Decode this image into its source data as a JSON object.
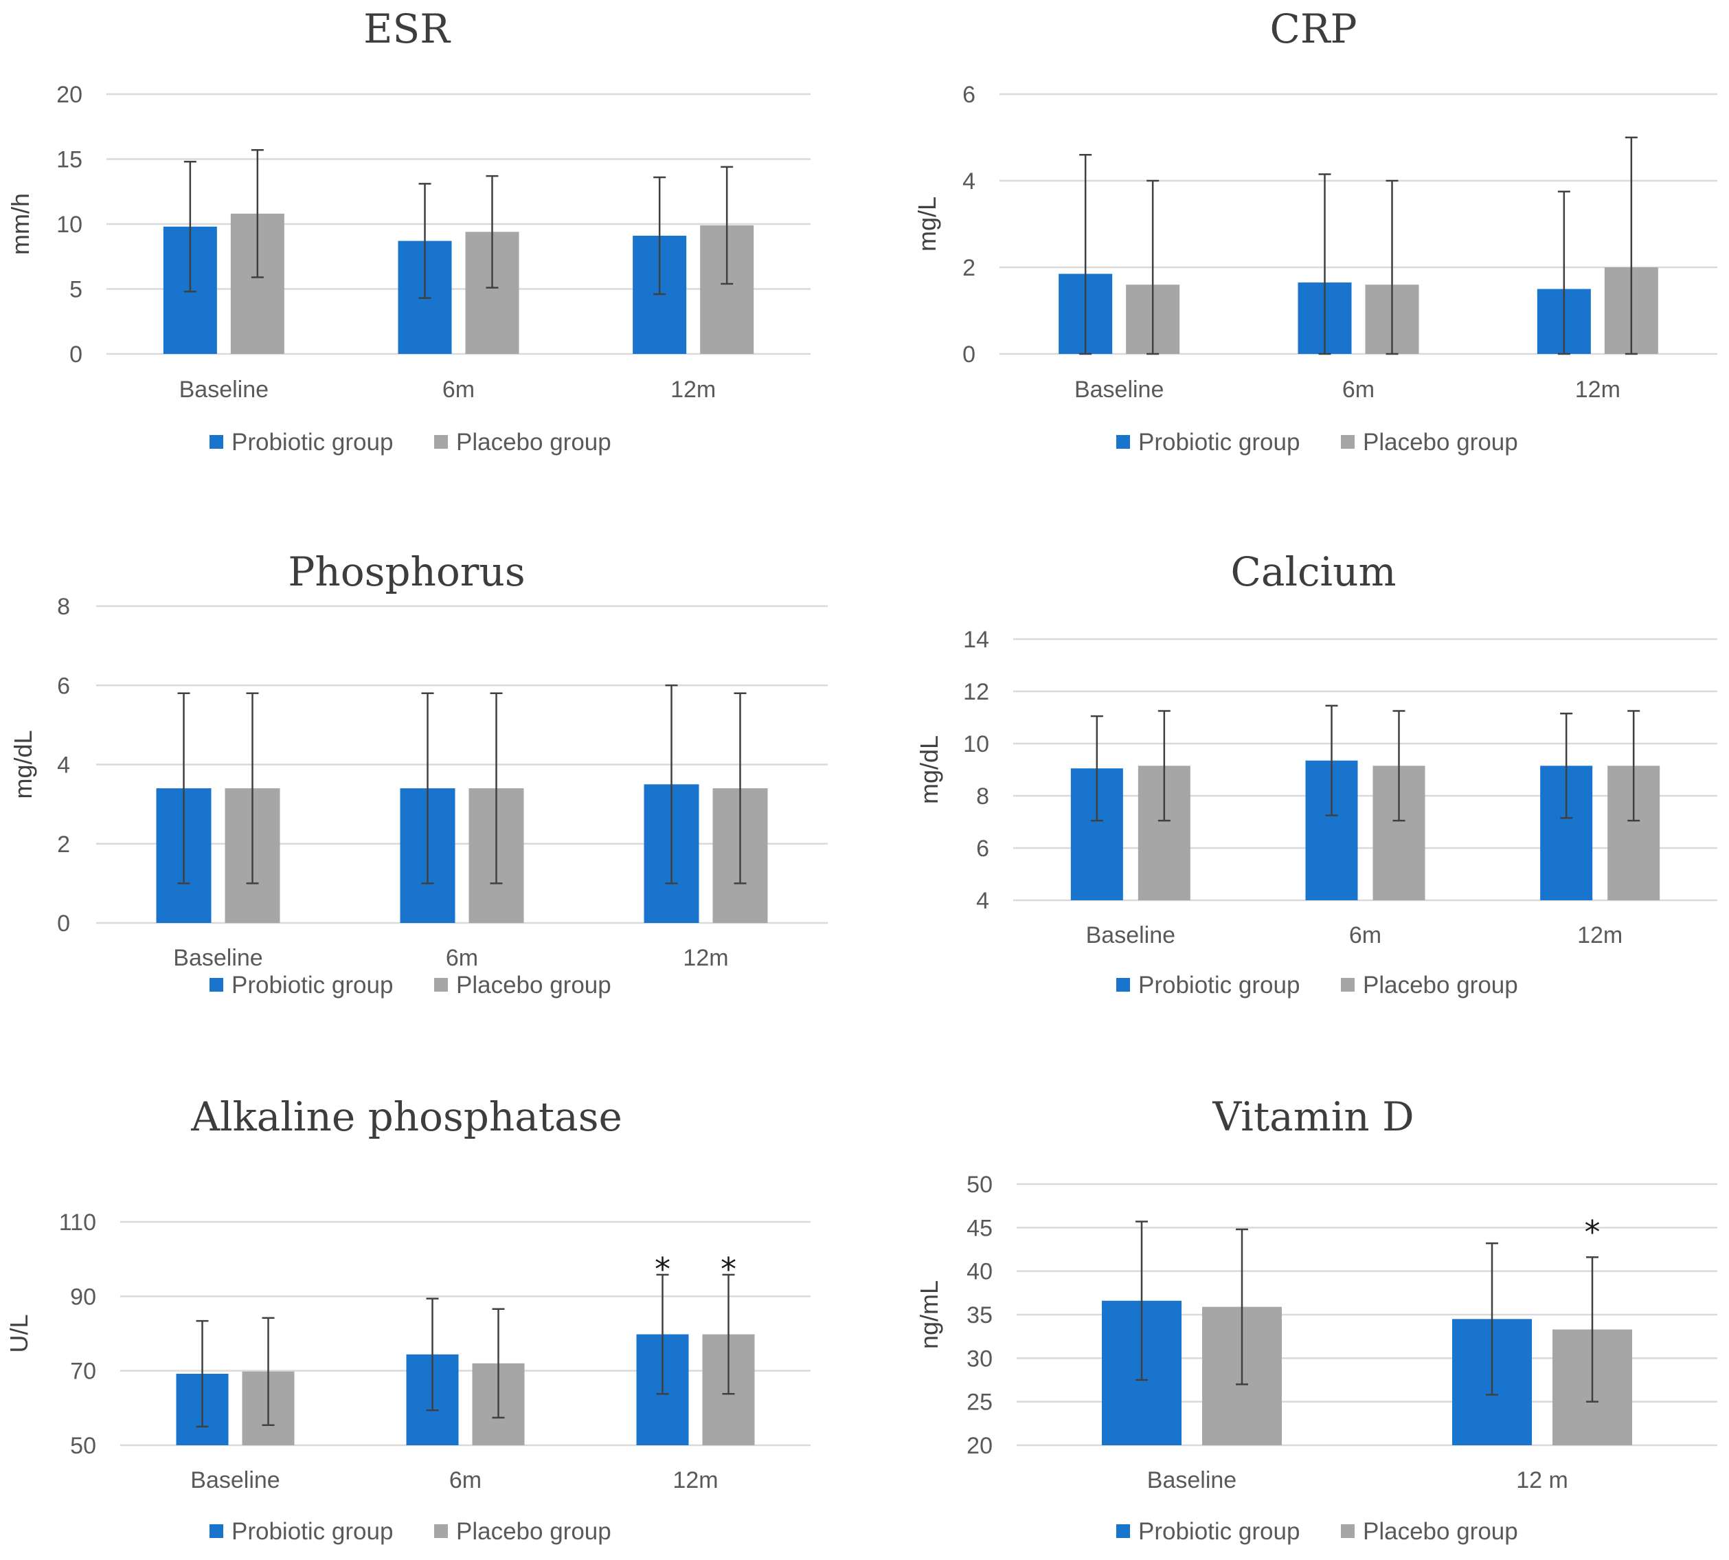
{
  "colors": {
    "probiotic": "#1874CD",
    "placebo": "#A6A6A6",
    "grid": "#D9D9D9",
    "error": "#404040"
  },
  "chart_data": [
    {
      "type": "bar",
      "title": "ESR",
      "ylabel": "mm/h",
      "ylim": [
        0,
        20
      ],
      "yticks": [
        0,
        5,
        10,
        15,
        20
      ],
      "categories": [
        "Baseline",
        "6m",
        "12m"
      ],
      "series": [
        {
          "name": "Probiotic group",
          "values": [
            9.8,
            8.7,
            9.1
          ],
          "errors": [
            5.0,
            4.4,
            4.5
          ]
        },
        {
          "name": "Placebo group",
          "values": [
            10.8,
            9.4,
            9.9
          ],
          "errors": [
            4.9,
            4.3,
            4.5
          ]
        }
      ],
      "annotations": []
    },
    {
      "type": "bar",
      "title": "CRP",
      "ylabel": "mg/L",
      "ylim": [
        0,
        6
      ],
      "yticks": [
        0,
        2,
        4,
        6
      ],
      "categories": [
        "Baseline",
        "6m",
        "12m"
      ],
      "series": [
        {
          "name": "Probiotic group",
          "values": [
            1.85,
            1.65,
            1.5
          ],
          "errors": [
            2.75,
            2.5,
            2.25
          ]
        },
        {
          "name": "Placebo group",
          "values": [
            1.6,
            1.6,
            2.0
          ],
          "errors": [
            2.4,
            2.4,
            3.0
          ]
        }
      ],
      "annotations": []
    },
    {
      "type": "bar",
      "title": "Phosphorus",
      "ylabel": "mg/dL",
      "ylim": [
        0,
        8
      ],
      "yticks": [
        0,
        2,
        4,
        6,
        8
      ],
      "categories": [
        "Baseline",
        "6m",
        "12m"
      ],
      "series": [
        {
          "name": "Probiotic group",
          "values": [
            3.4,
            3.4,
            3.5
          ],
          "errors": [
            2.4,
            2.4,
            2.5
          ]
        },
        {
          "name": "Placebo group",
          "values": [
            3.4,
            3.4,
            3.4
          ],
          "errors": [
            2.4,
            2.4,
            2.4
          ]
        }
      ],
      "annotations": []
    },
    {
      "type": "bar",
      "title": "Calcium",
      "ylabel": "mg/dL",
      "ylim": [
        4,
        14
      ],
      "yticks": [
        4,
        6,
        8,
        10,
        12,
        14
      ],
      "categories": [
        "Baseline",
        "6m",
        "12m"
      ],
      "series": [
        {
          "name": "Probiotic group",
          "values": [
            9.05,
            9.35,
            9.15
          ],
          "errors": [
            2.0,
            2.1,
            2.0
          ]
        },
        {
          "name": "Placebo group",
          "values": [
            9.15,
            9.15,
            9.15
          ],
          "errors": [
            2.1,
            2.1,
            2.1
          ]
        }
      ],
      "annotations": []
    },
    {
      "type": "bar",
      "title": "Alkaline phosphatase",
      "ylabel": "U/L",
      "ylim": [
        50,
        110
      ],
      "yticks": [
        50,
        70,
        90,
        110
      ],
      "categories": [
        "Baseline",
        "6m",
        "12m"
      ],
      "series": [
        {
          "name": "Probiotic group",
          "values": [
            69.2,
            74.4,
            79.8
          ],
          "errors": [
            14.2,
            15.0,
            16.0
          ]
        },
        {
          "name": "Placebo group",
          "values": [
            69.8,
            72.0,
            79.8
          ],
          "errors": [
            14.4,
            14.6,
            16.0
          ]
        }
      ],
      "annotations": [
        {
          "text": "*",
          "category": 2,
          "series": 0,
          "value": 98
        },
        {
          "text": "*",
          "category": 2,
          "series": 1,
          "value": 98
        }
      ]
    },
    {
      "type": "bar",
      "title": "Vitamin D",
      "ylabel": "ng/mL",
      "ylim": [
        20,
        50
      ],
      "yticks": [
        20,
        25,
        30,
        35,
        40,
        45,
        50
      ],
      "categories": [
        "Baseline",
        "12 m"
      ],
      "series": [
        {
          "name": "Probiotic group",
          "values": [
            36.6,
            34.5
          ],
          "errors": [
            9.1,
            8.7
          ]
        },
        {
          "name": "Placebo group",
          "values": [
            35.9,
            33.3
          ],
          "errors": [
            8.9,
            8.3
          ]
        }
      ],
      "annotations": [
        {
          "text": "*",
          "category": 1,
          "series": 1,
          "value": 44.8
        }
      ]
    }
  ]
}
